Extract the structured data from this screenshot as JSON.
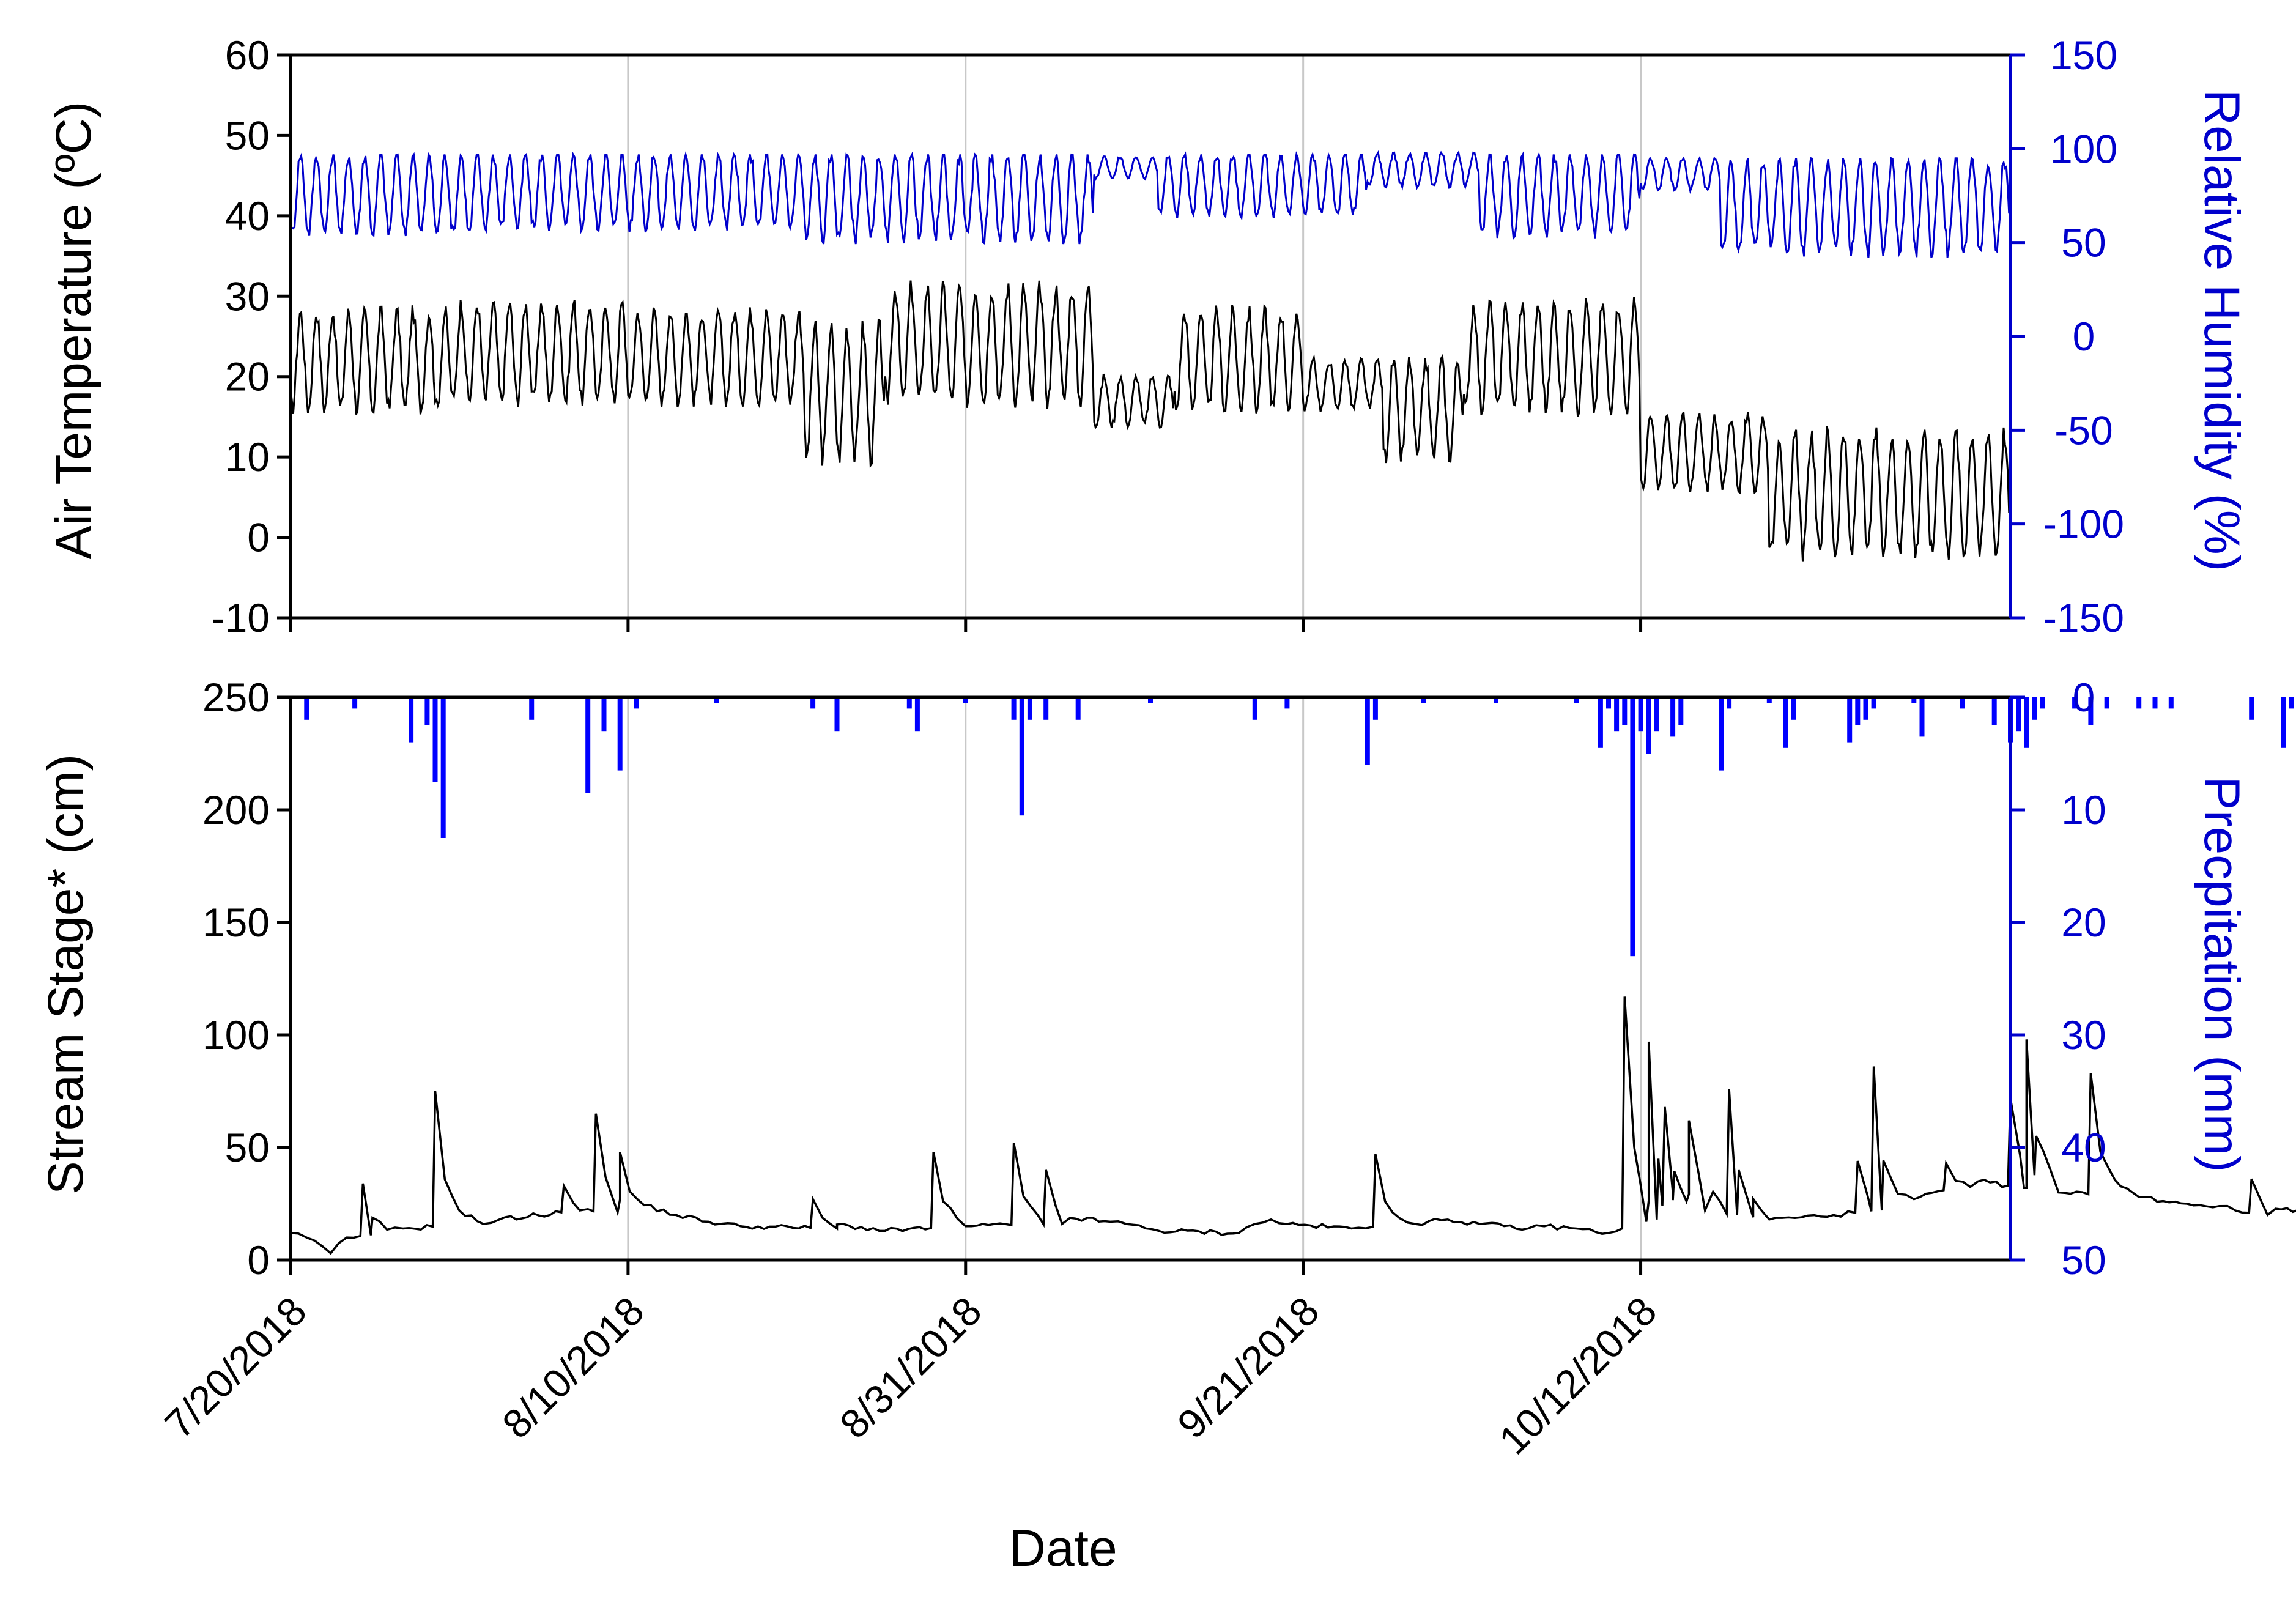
{
  "chart_data": [
    {
      "type": "line",
      "panel": "top",
      "x_start": "7/20/2018",
      "x_end": "11/4/2018",
      "xticks": [
        "7/20/2018",
        "8/10/2018",
        "8/31/2018",
        "9/21/2018",
        "10/12/2018"
      ],
      "xgrid": true,
      "ylabel": "Air Temperature (ºC)",
      "ylim": [
        -10,
        60
      ],
      "yticks": [
        "60",
        "50",
        "40",
        "30",
        "20",
        "10",
        "0",
        "-10"
      ],
      "y2label": "Relative Humidity (%)",
      "y2lim": [
        -150,
        150
      ],
      "y2ticks": [
        "150",
        "100",
        "50",
        "0",
        "-50",
        "-100",
        "-150"
      ],
      "series": [
        {
          "axis": "left",
          "color": "#000000",
          "segments": [
            {
              "start": "7/20/2018",
              "days": 10,
              "max": 28,
              "min": 16
            },
            {
              "start": "7/30/2018",
              "days": 11,
              "max": 29,
              "min": 17
            },
            {
              "start": "8/10/2018",
              "days": 11,
              "max": 28,
              "min": 17
            },
            {
              "start": "8/21/2018",
              "days": 5,
              "max": 26,
              "min": 10
            },
            {
              "start": "8/26/2018",
              "days": 13,
              "max": 31,
              "min": 17
            },
            {
              "start": "9/8/2018",
              "days": 5,
              "max": 20,
              "min": 14
            },
            {
              "start": "9/13/2018",
              "days": 8,
              "max": 28,
              "min": 16
            },
            {
              "start": "9/21/2018",
              "days": 5,
              "max": 22,
              "min": 16
            },
            {
              "start": "9/26/2018",
              "days": 5,
              "max": 22,
              "min": 10
            },
            {
              "start": "10/1/2018",
              "days": 11,
              "max": 29,
              "min": 16
            },
            {
              "start": "10/12/2018",
              "days": 8,
              "max": 15,
              "min": 6
            },
            {
              "start": "10/20/2018",
              "days": 15,
              "max": 13,
              "min": -2
            }
          ]
        },
        {
          "axis": "right",
          "color": "#0000cc",
          "segments": [
            {
              "start": "7/20/2018",
              "days": 12,
              "max": 97,
              "min": 55
            },
            {
              "start": "8/1/2018",
              "days": 20,
              "max": 97,
              "min": 58
            },
            {
              "start": "8/21/2018",
              "days": 18,
              "max": 97,
              "min": 52
            },
            {
              "start": "9/8/2018",
              "days": 4,
              "max": 96,
              "min": 84
            },
            {
              "start": "9/12/2018",
              "days": 13,
              "max": 97,
              "min": 65
            },
            {
              "start": "9/25/2018",
              "days": 7,
              "max": 98,
              "min": 80
            },
            {
              "start": "10/2/2018",
              "days": 10,
              "max": 97,
              "min": 55
            },
            {
              "start": "10/12/2018",
              "days": 5,
              "max": 95,
              "min": 78
            },
            {
              "start": "10/17/2018",
              "days": 18,
              "max": 95,
              "min": 45
            }
          ]
        }
      ]
    },
    {
      "type": "line",
      "panel": "bottom",
      "x_start": "7/20/2018",
      "x_end": "11/4/2018",
      "xticks": [
        "7/20/2018",
        "8/10/2018",
        "8/31/2018",
        "9/21/2018",
        "10/12/2018"
      ],
      "xgrid": true,
      "xlabel": "Date",
      "ylabel": "Stream Stage* (cm)",
      "ylim": [
        0,
        250
      ],
      "yticks": [
        "250",
        "200",
        "150",
        "100",
        "50",
        "0"
      ],
      "y2label": "Precpitation (mm)",
      "y2lim": [
        50,
        0
      ],
      "y2ticks": [
        "0",
        "10",
        "20",
        "30",
        "40",
        "50"
      ],
      "series": [
        {
          "axis": "left",
          "color": "#000000",
          "x_days": [
            0,
            1,
            2,
            2.5,
            3.5,
            5,
            7,
            12,
            13,
            18,
            24,
            26,
            28,
            34,
            37,
            42,
            48,
            51,
            52,
            54,
            59,
            60,
            61,
            62,
            66,
            70,
            72,
            74,
            77,
            78,
            80,
            82,
            85,
            86,
            88,
            90,
            91,
            92,
            94,
            96,
            99,
            101,
            105,
            108,
            110,
            115,
            118,
            120,
            121,
            123,
            126,
            130,
            131,
            133,
            136,
            139,
            140,
            141,
            144,
            147,
            150,
            152,
            155,
            158,
            160,
            162
          ],
          "stage_cm": [
            12,
            10,
            6,
            3,
            10,
            11,
            14,
            16,
            18,
            22,
            20,
            17,
            15,
            14,
            13,
            15,
            16,
            17,
            16,
            13,
            12,
            16,
            18,
            16,
            14,
            16,
            18,
            16,
            14,
            15,
            14,
            12,
            18,
            30,
            22,
            20,
            19,
            18,
            19,
            20,
            22,
            27,
            35,
            32,
            30,
            28,
            25,
            24,
            22,
            20,
            22,
            26,
            28,
            30,
            27,
            25,
            24,
            22,
            20,
            18,
            16,
            15,
            14,
            10,
            7,
            26
          ],
          "peaks": [
            {
              "day": 4.5,
              "value": 34
            },
            {
              "day": 9,
              "value": 75
            },
            {
              "day": 17,
              "value": 33
            },
            {
              "day": 19,
              "value": 65
            },
            {
              "day": 20.5,
              "value": 48
            },
            {
              "day": 32.5,
              "value": 27
            },
            {
              "day": 40,
              "value": 48
            },
            {
              "day": 45,
              "value": 52
            },
            {
              "day": 47,
              "value": 40
            },
            {
              "day": 67.5,
              "value": 47
            },
            {
              "day": 83,
              "value": 117
            },
            {
              "day": 84.5,
              "value": 97
            },
            {
              "day": 85.5,
              "value": 68
            },
            {
              "day": 87,
              "value": 62
            },
            {
              "day": 89.5,
              "value": 76
            },
            {
              "day": 97.5,
              "value": 44
            },
            {
              "day": 98.5,
              "value": 86
            },
            {
              "day": 103,
              "value": 43
            },
            {
              "day": 107,
              "value": 72
            },
            {
              "day": 108,
              "value": 98
            },
            {
              "day": 112,
              "value": 83
            },
            {
              "day": 122,
              "value": 36
            },
            {
              "day": 126.5,
              "value": 38
            },
            {
              "day": 140,
              "value": 32
            },
            {
              "day": 141.5,
              "value": 31
            }
          ]
        },
        {
          "axis": "right",
          "color": "#0000ff",
          "x_days": [
            1,
            4,
            7.5,
            8.5,
            9,
            9.5,
            15,
            18.5,
            19.5,
            20.5,
            21.5,
            26.5,
            32.5,
            34,
            38.5,
            39,
            42,
            45,
            45.5,
            46,
            47,
            49,
            53.5,
            60,
            62,
            67,
            67.5,
            70.5,
            75,
            80,
            81.5,
            82,
            82.5,
            83,
            83.5,
            84,
            84.5,
            85,
            86,
            86.5,
            89,
            89.5,
            92,
            93,
            93.5,
            97,
            97.5,
            98,
            98.5,
            101,
            101.5,
            104,
            106,
            107,
            107.5,
            108,
            108.5,
            109,
            111,
            112,
            113,
            115,
            116,
            117,
            122,
            124,
            124.5,
            127,
            132,
            133,
            136,
            138,
            139,
            141,
            147,
            147.5,
            148,
            149,
            150,
            160,
            161,
            162
          ],
          "precip_mm": [
            2,
            1,
            4,
            2.5,
            7.5,
            12.5,
            2,
            8.5,
            3,
            6.5,
            1,
            0.5,
            1,
            3,
            1,
            3,
            0.5,
            2,
            10.5,
            2,
            2,
            2,
            0.5,
            2,
            1,
            6,
            2,
            0.5,
            0.5,
            0.5,
            4.5,
            1,
            3,
            2.5,
            23,
            3,
            5,
            3,
            3.5,
            2.5,
            6.5,
            1,
            0.5,
            4.5,
            2,
            4,
            2.5,
            2,
            1,
            0.5,
            3.5,
            1,
            2.5,
            4,
            3,
            4.5,
            2,
            1,
            1,
            2.5,
            1,
            1,
            1,
            1,
            2,
            4.5,
            1,
            0.5,
            3,
            1.5,
            1,
            1,
            2,
            1.5,
            2,
            1.5,
            1,
            1,
            0.5,
            1.5,
            1,
            1.5
          ]
        }
      ]
    }
  ]
}
